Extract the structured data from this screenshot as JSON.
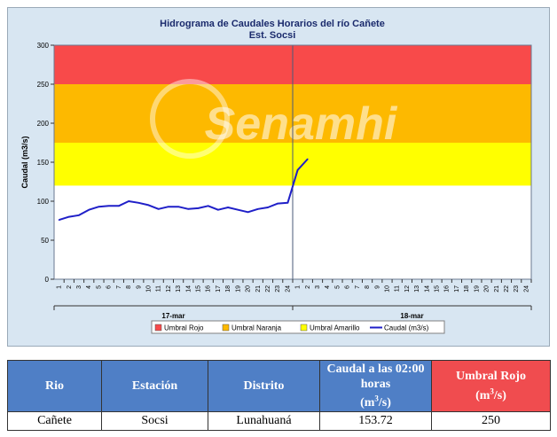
{
  "chart_data": {
    "type": "line",
    "title": "Hidrograma de Caudales Horarios del río Cañete",
    "subtitle": "Est. Socsi",
    "ylabel": "Caudal  (m3/s)",
    "ylim": [
      0,
      300
    ],
    "y_ticks": [
      0,
      50,
      100,
      150,
      200,
      250,
      300
    ],
    "x_tick_labels": [
      "1",
      "2",
      "3",
      "4",
      "5",
      "6",
      "7",
      "8",
      "9",
      "10",
      "11",
      "12",
      "13",
      "14",
      "15",
      "16",
      "17",
      "18",
      "19",
      "20",
      "21",
      "22",
      "23",
      "24",
      "1",
      "2",
      "3",
      "4",
      "5",
      "6",
      "7",
      "8",
      "9",
      "10",
      "11",
      "12",
      "13",
      "14",
      "15",
      "16",
      "17",
      "18",
      "19",
      "20",
      "21",
      "22",
      "23",
      "24"
    ],
    "day_labels": [
      "17-mar",
      "18-mar"
    ],
    "watermark": "Senamhi",
    "bands": [
      {
        "name": "Umbral Rojo",
        "from": 250,
        "to": 300,
        "color": "#f84a4a"
      },
      {
        "name": "Umbral Naranja",
        "from": 175,
        "to": 250,
        "color": "#fdb900"
      },
      {
        "name": "Umbral Amarillo",
        "from": 120,
        "to": 175,
        "color": "#ffff00"
      }
    ],
    "series": [
      {
        "name": "Caudal (m3/s)",
        "color": "#1f1fc8",
        "x": [
          1,
          2,
          3,
          4,
          5,
          6,
          7,
          8,
          9,
          10,
          11,
          12,
          13,
          14,
          15,
          16,
          17,
          18,
          19,
          20,
          21,
          22,
          23,
          24,
          25,
          26
        ],
        "values": [
          76,
          80,
          82,
          89,
          93,
          94,
          94,
          100,
          98,
          95,
          90,
          93,
          93,
          90,
          91,
          94,
          89,
          92,
          89,
          86,
          90,
          92,
          97,
          98,
          140,
          154
        ]
      }
    ],
    "legend": [
      {
        "label": "Umbral Rojo",
        "color": "#f84a4a",
        "kind": "box"
      },
      {
        "label": "Umbral Naranja",
        "color": "#fdb900",
        "kind": "box"
      },
      {
        "label": "Umbral Amarillo",
        "color": "#ffff00",
        "kind": "box"
      },
      {
        "label": "Caudal (m3/s)",
        "color": "#1f1fc8",
        "kind": "line"
      }
    ],
    "legend_position": "bottom"
  },
  "table": {
    "headers": [
      "Rio",
      "Estación",
      "Distrito",
      "Caudal a las 02:00 horas",
      "Umbral Rojo"
    ],
    "units": [
      "",
      "",
      "",
      "(m3/s)",
      "(m3/s)"
    ],
    "unit_base": "(m",
    "unit_exp": "3",
    "unit_tail": "/s)",
    "row": [
      "Cañete",
      "Socsi",
      "Lunahuaná",
      "153.72",
      "250"
    ]
  }
}
